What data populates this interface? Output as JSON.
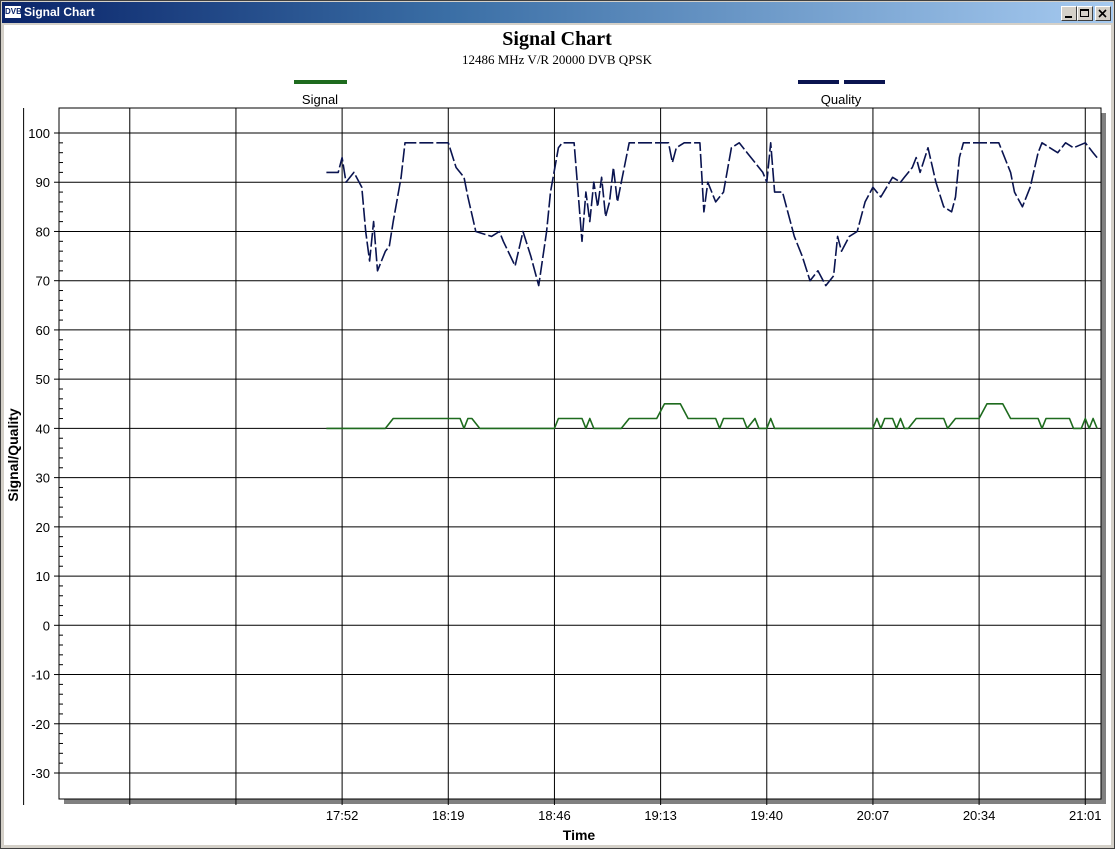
{
  "window": {
    "title": "Signal Chart",
    "icon_name": "dvb-app-icon",
    "icon_text": "DVB",
    "buttons": [
      "minimize-button",
      "maximize-button",
      "close-button"
    ]
  },
  "chart_data": {
    "type": "line",
    "title": "Signal Chart",
    "subtitle": "12486 MHz V/R 20000 DVB QPSK",
    "xlabel": "Time",
    "ylabel": "Signal/Quality",
    "ylim": [
      -30,
      100
    ],
    "yticks": [
      100,
      90,
      80,
      70,
      60,
      50,
      40,
      30,
      20,
      10,
      0,
      -10,
      -20,
      -30
    ],
    "ytick_labels": [
      "100",
      "90",
      "80",
      "70",
      "60",
      "50",
      "40",
      "30",
      "20",
      "10",
      "0",
      "-10",
      "-20",
      "-30"
    ],
    "xlim_minutes": [
      1000,
      1265
    ],
    "xtick_labels": [
      "",
      "",
      "",
      "17:52",
      "18:19",
      "18:46",
      "19:13",
      "19:40",
      "20:07",
      "20:34",
      "21:01"
    ],
    "xtick_minutes": [
      991,
      1018,
      1045,
      1072,
      1099,
      1126,
      1153,
      1180,
      1207,
      1234,
      1261
    ],
    "grid": true,
    "legend_placement": "top",
    "series": [
      {
        "name": "Signal",
        "color": "#1e6b1e",
        "style": "solid",
        "points": [
          [
            1068,
            40
          ],
          [
            1083,
            40
          ],
          [
            1085,
            42
          ],
          [
            1102,
            42
          ],
          [
            1103,
            40
          ],
          [
            1104,
            42
          ],
          [
            1105,
            42
          ],
          [
            1107,
            40
          ],
          [
            1126,
            40
          ],
          [
            1127,
            42
          ],
          [
            1133,
            42
          ],
          [
            1134,
            40
          ],
          [
            1135,
            42
          ],
          [
            1136,
            40
          ],
          [
            1143,
            40
          ],
          [
            1145,
            42
          ],
          [
            1152,
            42
          ],
          [
            1154,
            45
          ],
          [
            1158,
            45
          ],
          [
            1160,
            42
          ],
          [
            1167,
            42
          ],
          [
            1168,
            40
          ],
          [
            1169,
            42
          ],
          [
            1174,
            42
          ],
          [
            1175,
            40
          ],
          [
            1177,
            42
          ],
          [
            1178,
            40
          ],
          [
            1180,
            40
          ],
          [
            1181,
            42
          ],
          [
            1182,
            40
          ],
          [
            1207,
            40
          ],
          [
            1208,
            42
          ],
          [
            1209,
            40
          ],
          [
            1210,
            42
          ],
          [
            1212,
            42
          ],
          [
            1213,
            40
          ],
          [
            1214,
            42
          ],
          [
            1215,
            40
          ],
          [
            1216,
            40
          ],
          [
            1218,
            42
          ],
          [
            1225,
            42
          ],
          [
            1226,
            40
          ],
          [
            1228,
            42
          ],
          [
            1234,
            42
          ],
          [
            1236,
            45
          ],
          [
            1240,
            45
          ],
          [
            1242,
            42
          ],
          [
            1249,
            42
          ],
          [
            1250,
            40
          ],
          [
            1251,
            42
          ],
          [
            1257,
            42
          ],
          [
            1258,
            40
          ],
          [
            1260,
            40
          ],
          [
            1261,
            42
          ],
          [
            1262,
            40
          ],
          [
            1263,
            42
          ],
          [
            1264,
            40
          ]
        ]
      },
      {
        "name": "Quality",
        "color": "#0a1450",
        "style": "dashed",
        "points": [
          [
            1068,
            92
          ],
          [
            1071,
            92
          ],
          [
            1072,
            95
          ],
          [
            1073,
            90
          ],
          [
            1075,
            92
          ],
          [
            1077,
            89
          ],
          [
            1078,
            80
          ],
          [
            1079,
            74
          ],
          [
            1080,
            82
          ],
          [
            1081,
            72
          ],
          [
            1083,
            76
          ],
          [
            1084,
            77
          ],
          [
            1085,
            82
          ],
          [
            1087,
            91
          ],
          [
            1088,
            98
          ],
          [
            1099,
            98
          ],
          [
            1101,
            93
          ],
          [
            1103,
            91
          ],
          [
            1104,
            87
          ],
          [
            1106,
            80
          ],
          [
            1110,
            79
          ],
          [
            1112,
            80
          ],
          [
            1113,
            78
          ],
          [
            1116,
            73
          ],
          [
            1118,
            80
          ],
          [
            1120,
            75
          ],
          [
            1122,
            69
          ],
          [
            1124,
            80
          ],
          [
            1125,
            88
          ],
          [
            1127,
            97
          ],
          [
            1128,
            98
          ],
          [
            1131,
            98
          ],
          [
            1133,
            78
          ],
          [
            1134,
            88
          ],
          [
            1135,
            82
          ],
          [
            1136,
            90
          ],
          [
            1137,
            85
          ],
          [
            1138,
            91
          ],
          [
            1139,
            83
          ],
          [
            1140,
            86
          ],
          [
            1141,
            93
          ],
          [
            1142,
            86
          ],
          [
            1143,
            90
          ],
          [
            1145,
            98
          ],
          [
            1155,
            98
          ],
          [
            1156,
            94
          ],
          [
            1157,
            97
          ],
          [
            1159,
            98
          ],
          [
            1163,
            98
          ],
          [
            1164,
            84
          ],
          [
            1165,
            90
          ],
          [
            1167,
            86
          ],
          [
            1169,
            88
          ],
          [
            1171,
            97
          ],
          [
            1173,
            98
          ],
          [
            1175,
            96
          ],
          [
            1177,
            94
          ],
          [
            1179,
            92
          ],
          [
            1180,
            90
          ],
          [
            1181,
            98
          ],
          [
            1182,
            88
          ],
          [
            1184,
            88
          ],
          [
            1187,
            79
          ],
          [
            1189,
            75
          ],
          [
            1191,
            70
          ],
          [
            1193,
            72
          ],
          [
            1195,
            69
          ],
          [
            1197,
            71
          ],
          [
            1198,
            79
          ],
          [
            1199,
            76
          ],
          [
            1201,
            79
          ],
          [
            1203,
            80
          ],
          [
            1205,
            86
          ],
          [
            1207,
            89
          ],
          [
            1209,
            87
          ],
          [
            1212,
            91
          ],
          [
            1214,
            90
          ],
          [
            1215,
            91
          ],
          [
            1217,
            93
          ],
          [
            1218,
            95
          ],
          [
            1219,
            92
          ],
          [
            1221,
            97
          ],
          [
            1223,
            90
          ],
          [
            1225,
            85
          ],
          [
            1227,
            84
          ],
          [
            1228,
            87
          ],
          [
            1229,
            95
          ],
          [
            1230,
            98
          ],
          [
            1239,
            98
          ],
          [
            1241,
            94
          ],
          [
            1242,
            92
          ],
          [
            1243,
            88
          ],
          [
            1245,
            85
          ],
          [
            1247,
            89
          ],
          [
            1249,
            96
          ],
          [
            1250,
            98
          ],
          [
            1252,
            97
          ],
          [
            1254,
            96
          ],
          [
            1256,
            98
          ],
          [
            1258,
            97
          ],
          [
            1261,
            98
          ],
          [
            1263,
            96
          ],
          [
            1264,
            95
          ]
        ]
      }
    ]
  }
}
